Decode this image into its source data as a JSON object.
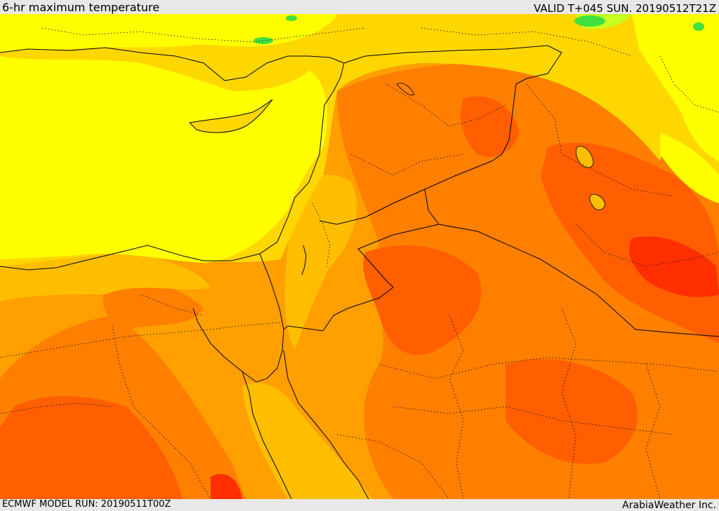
{
  "header": {
    "title": "6-hr maximum temperature",
    "valid": "VALID T+045 SUN. 20190512T21Z"
  },
  "footer": {
    "model_run": "ECMWF MODEL RUN: 20190511T00Z",
    "credit": "ArabiaWeather Inc."
  },
  "map": {
    "colors": {
      "green": "#40e040",
      "yellow_green": "#c8ff20",
      "yellow": "#ffff00",
      "light_orange": "#ffd700",
      "orange_yellow": "#ffbf00",
      "orange": "#ff9f00",
      "dark_orange": "#ff7f00",
      "red_orange": "#ff5f00",
      "red": "#ff2f00",
      "border": "#000000"
    }
  }
}
